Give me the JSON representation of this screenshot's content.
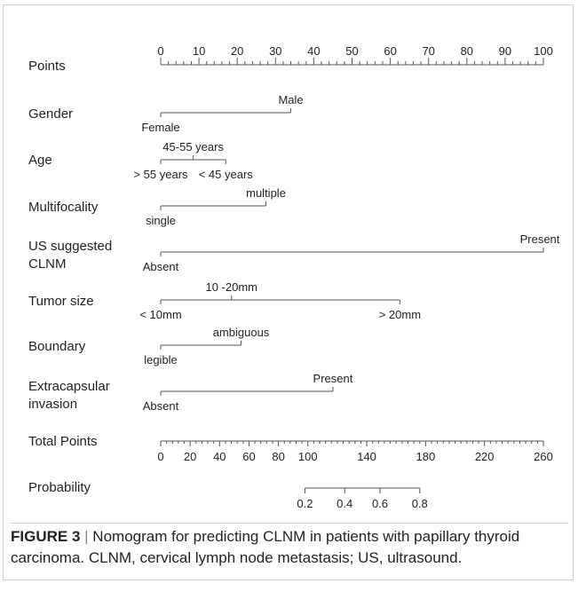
{
  "caption": {
    "figure_label": "FIGURE 3",
    "separator": "|",
    "text": "Nomogram for predicting CLNM in patients with papillary thyroid carcinoma. CLNM, cervical lymph node metastasis; US, ultrasound."
  },
  "chart_data": {
    "type": "nomogram",
    "points_scale": {
      "label": "Points",
      "range": [
        0,
        100
      ],
      "major_ticks": [
        0,
        10,
        20,
        30,
        40,
        50,
        60,
        70,
        80,
        90,
        100
      ],
      "minor_step": 2
    },
    "predictors": [
      {
        "label": "Gender",
        "levels": [
          {
            "name": "Female",
            "points": 0,
            "side": "below"
          },
          {
            "name": "Male",
            "points": 34,
            "side": "above"
          }
        ]
      },
      {
        "label": "Age",
        "levels": [
          {
            "name": "> 55 years",
            "points": 0,
            "side": "below"
          },
          {
            "name": "45-55 years",
            "points": 8.5,
            "side": "above"
          },
          {
            "name": "< 45 years",
            "points": 17,
            "side": "below"
          }
        ]
      },
      {
        "label": "Multifocality",
        "levels": [
          {
            "name": "single",
            "points": 0,
            "side": "below"
          },
          {
            "name": "multiple",
            "points": 27.5,
            "side": "above"
          }
        ]
      },
      {
        "label": "US suggested CLNM",
        "label_lines": [
          "US suggested",
          "CLNM"
        ],
        "levels": [
          {
            "name": "Absent",
            "points": 0,
            "side": "below"
          },
          {
            "name": "Present",
            "points": 100,
            "side": "above"
          }
        ]
      },
      {
        "label": "Tumor size",
        "levels": [
          {
            "name": "< 10mm",
            "points": 0,
            "side": "below"
          },
          {
            "name": "10 -20mm",
            "points": 18.5,
            "side": "above"
          },
          {
            "name": "> 20mm",
            "points": 62.5,
            "side": "below"
          }
        ]
      },
      {
        "label": "Boundary",
        "levels": [
          {
            "name": "legible",
            "points": 0,
            "side": "below"
          },
          {
            "name": "ambiguous",
            "points": 21,
            "side": "above"
          }
        ]
      },
      {
        "label": "Extracapsular invasion",
        "label_lines": [
          "Extracapsular",
          "invasion"
        ],
        "levels": [
          {
            "name": "Absent",
            "points": 0,
            "side": "below"
          },
          {
            "name": "Present",
            "points": 45,
            "side": "above"
          }
        ]
      }
    ],
    "total_points": {
      "label": "Total Points",
      "range": [
        0,
        260
      ],
      "tick_labels": [
        0,
        20,
        40,
        60,
        80,
        100,
        140,
        180,
        220,
        260
      ],
      "minor_step": 4
    },
    "probability": {
      "label": "Probability",
      "ticks": [
        {
          "value": 0.2,
          "label": "0.2",
          "total_points": 98
        },
        {
          "value": 0.4,
          "label": "0.4",
          "total_points": 125
        },
        {
          "value": 0.6,
          "label": "0.6",
          "total_points": 149
        },
        {
          "value": 0.8,
          "label": "0.8",
          "total_points": 176
        }
      ]
    }
  }
}
